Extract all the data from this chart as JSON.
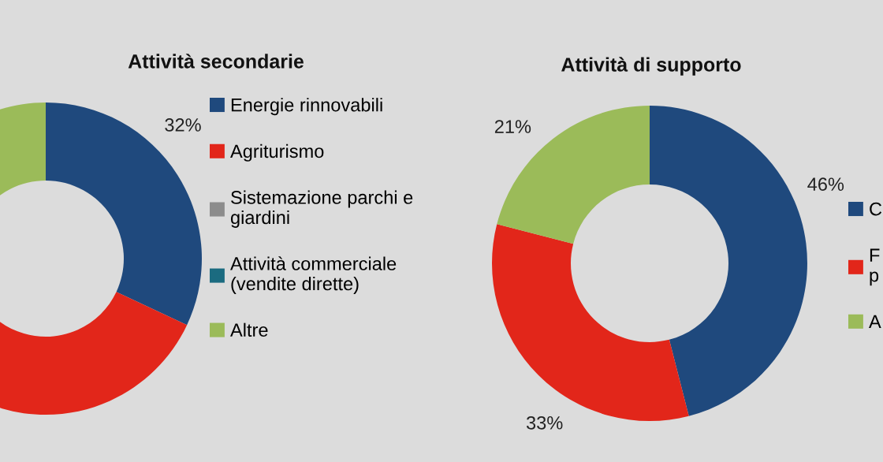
{
  "chart_data": [
    {
      "type": "donut",
      "title": "Attività secondarie",
      "categories": [
        "Energie rinnovabili",
        "Agriturismo",
        "Sistemazione parchi e\ngiardini",
        "Attività commerciale\n(vendite dirette)",
        "Altre"
      ],
      "values": [
        32,
        45,
        null,
        null,
        15
      ],
      "value_labels": [
        "32%",
        null,
        null,
        null,
        null
      ],
      "colors": [
        "#1f497d",
        "#e2261a",
        "#8c8c8c",
        "#1b6b80",
        "#9bbb59"
      ],
      "legend": "right"
    },
    {
      "type": "donut",
      "title": "Attività di supporto",
      "categories": [
        "C",
        "F\np",
        "A"
      ],
      "values": [
        46,
        33,
        21
      ],
      "value_labels": [
        "46%",
        "33%",
        "21%"
      ],
      "colors": [
        "#1f497d",
        "#e2261a",
        "#9bbb59"
      ],
      "legend": "right"
    }
  ]
}
